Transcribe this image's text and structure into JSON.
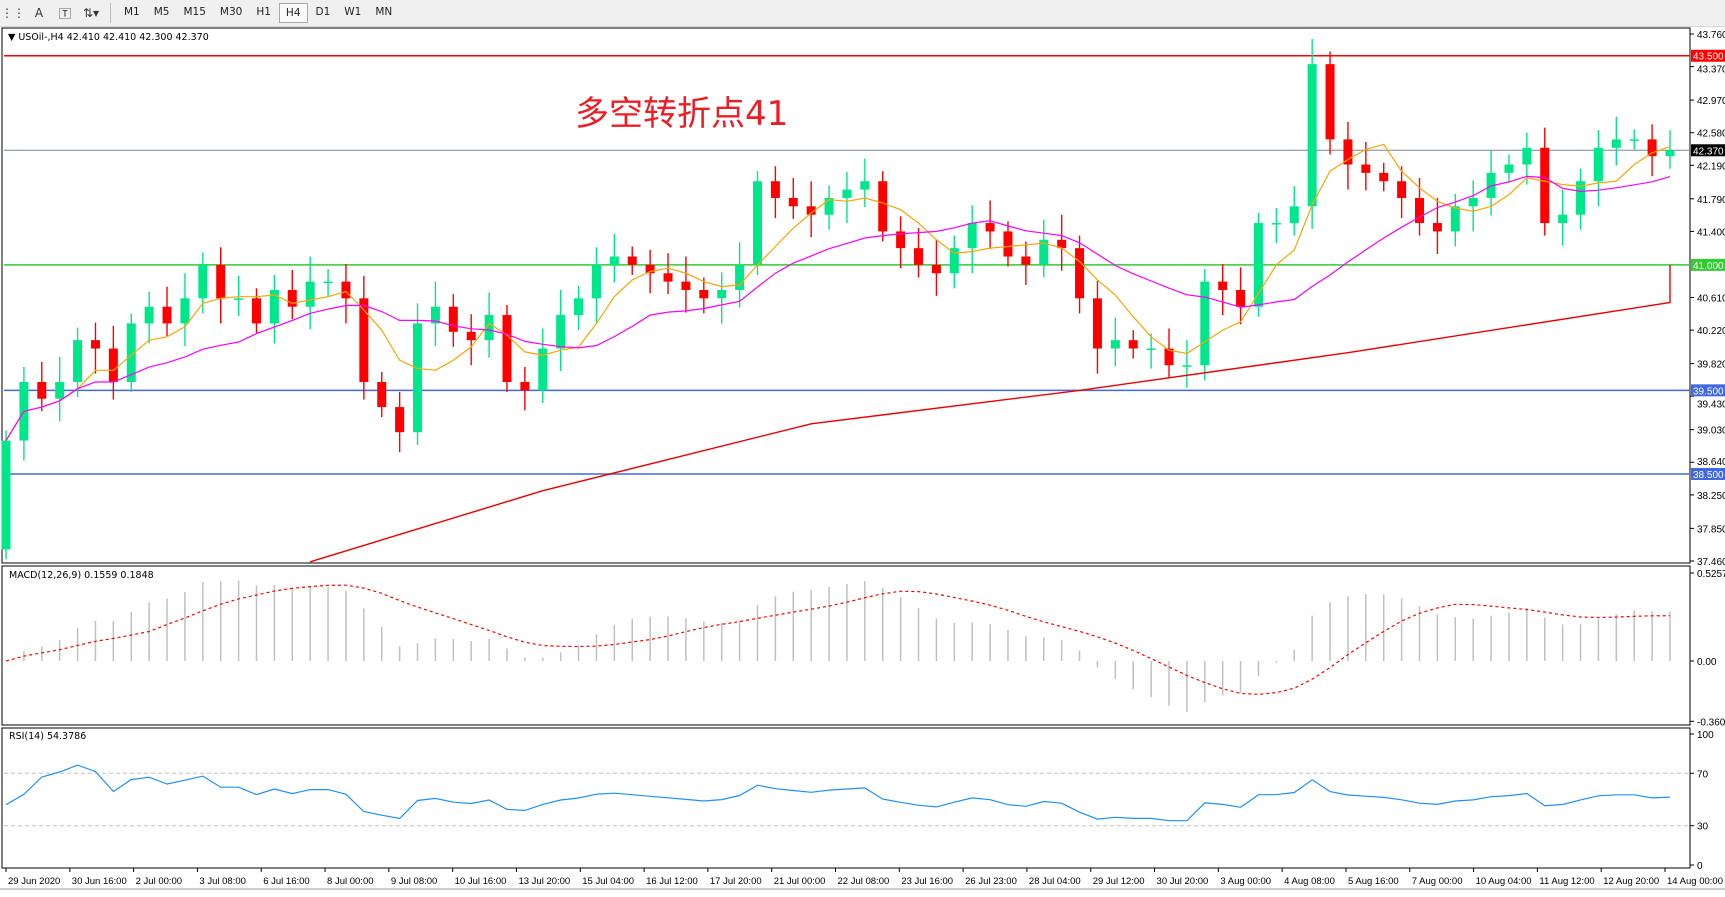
{
  "toolbar": {
    "icons": [
      "grid-icon",
      "text-A-icon",
      "text-label-icon",
      "arrows-icon"
    ],
    "timeframes": [
      "M1",
      "M5",
      "M15",
      "M30",
      "H1",
      "H4",
      "D1",
      "W1",
      "MN"
    ],
    "active_timeframe": "H4"
  },
  "chart_header": "USOil-,H4  42.410 42.410 42.300 42.370",
  "annotation": "多空转折点41",
  "macd_label": "MACD(12,26,9) 0.1559 0.1848",
  "rsi_label": "RSI(14) 54.3786",
  "colors": {
    "bull": "#00e68a",
    "bear": "#ff0000",
    "ma_fast": "#ffa500",
    "ma_mid": "#ff00ff",
    "ma_slow": "#ee0000",
    "resistance": "#ff0000",
    "pivot": "#33cc33",
    "support": "#4169e1",
    "rsi": "#1e90ff",
    "macd_signal": "#ff0000",
    "macd_hist": "#c0c0c0"
  },
  "chart_data": [
    {
      "type": "candlestick",
      "symbol": "USOil-",
      "timeframe": "H4",
      "ylim": [
        37.46,
        43.76
      ],
      "y_ticks": [
        "43.760",
        "43.370",
        "42.970",
        "42.580",
        "42.190",
        "41.790",
        "41.400",
        "40.610",
        "40.220",
        "39.820",
        "39.430",
        "39.030",
        "38.640",
        "38.250",
        "37.850",
        "37.460"
      ],
      "x_ticks": [
        "29 Jun 2020",
        "30 Jun 16:00",
        "2 Jul 00:00",
        "3 Jul 08:00",
        "6 Jul 16:00",
        "8 Jul 00:00",
        "9 Jul 08:00",
        "10 Jul 16:00",
        "13 Jul 20:00",
        "15 Jul 04:00",
        "16 Jul 12:00",
        "17 Jul 20:00",
        "21 Jul 00:00",
        "22 Jul 08:00",
        "23 Jul 16:00",
        "26 Jul 23:00",
        "28 Jul 04:00",
        "29 Jul 12:00",
        "30 Jul 20:00",
        "3 Aug 00:00",
        "4 Aug 08:00",
        "5 Aug 16:00",
        "7 Aug 00:00",
        "10 Aug 04:00",
        "11 Aug 12:00",
        "12 Aug 20:00",
        "14 Aug 00:00"
      ],
      "first_open": 37.6,
      "close": [
        38.9,
        39.6,
        39.4,
        39.6,
        40.1,
        40.0,
        39.6,
        40.3,
        40.5,
        40.3,
        40.6,
        41.0,
        40.6,
        40.6,
        40.3,
        40.7,
        40.5,
        40.8,
        40.8,
        40.6,
        39.6,
        39.3,
        39.0,
        40.3,
        40.5,
        40.2,
        40.1,
        40.4,
        39.6,
        39.5,
        40.0,
        40.4,
        40.6,
        41.0,
        41.1,
        41.0,
        40.9,
        40.8,
        40.7,
        40.6,
        40.7,
        41.0,
        42.0,
        41.8,
        41.7,
        41.6,
        41.8,
        41.9,
        42.0,
        41.4,
        41.2,
        41.0,
        40.9,
        41.2,
        41.5,
        41.4,
        41.1,
        41.0,
        41.3,
        41.2,
        40.6,
        40.0,
        40.1,
        40.0,
        40.0,
        39.8,
        39.8,
        40.8,
        40.7,
        40.5,
        41.5,
        41.5,
        41.7,
        43.4,
        42.5,
        42.2,
        42.1,
        42.0,
        41.8,
        41.5,
        41.4,
        41.7,
        41.8,
        42.1,
        42.2,
        42.4,
        41.5,
        41.6,
        42.0,
        42.4,
        42.5,
        42.5,
        42.3,
        42.37
      ],
      "ma_slow_knots": [
        [
          17,
          37.45
        ],
        [
          30,
          38.3
        ],
        [
          45,
          39.1
        ],
        [
          60,
          39.5
        ],
        [
          75,
          39.95
        ],
        [
          95,
          40.55
        ],
        [
          110,
          40.75
        ],
        [
          122,
          41.0
        ]
      ],
      "horizontal_levels": [
        {
          "price": 43.5,
          "label": "43.500",
          "role": "resistance"
        },
        {
          "price": 41.0,
          "label": "41.000",
          "role": "pivot"
        },
        {
          "price": 39.5,
          "label": "39.500",
          "role": "support"
        },
        {
          "price": 38.5,
          "label": "38.500",
          "role": "support"
        }
      ],
      "current_price": {
        "price": 42.37,
        "label": "42.370"
      }
    },
    {
      "type": "bar+line",
      "indicator": "MACD(12,26,9)",
      "main": 0.1559,
      "signal": 0.1848,
      "ylim": [
        -0.3603,
        0.5257
      ],
      "y_ticks": [
        "0.5257",
        "0.00",
        "-0.3603"
      ]
    },
    {
      "type": "line",
      "indicator": "RSI(14)",
      "value": 54.3786,
      "ylim": [
        0,
        100
      ],
      "levels": [
        30,
        70
      ],
      "y_ticks": [
        "100",
        "70",
        "30",
        "0"
      ]
    }
  ]
}
